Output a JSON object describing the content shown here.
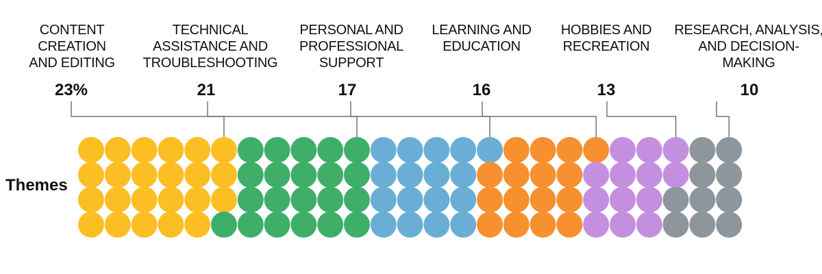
{
  "chart_data": {
    "type": "waffle",
    "row_label": "Themes",
    "grid": {
      "rows": 4,
      "columns": 25,
      "fill_order": "column-major, top-to-bottom"
    },
    "categories": [
      {
        "label": "CONTENT\nCREATION\nAND EDITING",
        "value": 23,
        "value_label": "23%",
        "color": "#FBBF24"
      },
      {
        "label": "TECHNICAL\nASSISTANCE AND\nTROUBLESHOOTING",
        "value": 21,
        "value_label": "21",
        "color": "#3FAE69"
      },
      {
        "label": "PERSONAL AND\nPROFESSIONAL\nSUPPORT",
        "value": 17,
        "value_label": "17",
        "color": "#6AAED6"
      },
      {
        "label": "LEARNING AND\nEDUCATION",
        "value": 16,
        "value_label": "16",
        "color": "#F7902E"
      },
      {
        "label": "HOBBIES AND\nRECREATION",
        "value": 13,
        "value_label": "13",
        "color": "#C58FE0"
      },
      {
        "label": "RESEARCH, ANALYSIS,\nAND DECISION-\nMAKING",
        "value": 10,
        "value_label": "10",
        "color": "#8C969C"
      }
    ]
  }
}
